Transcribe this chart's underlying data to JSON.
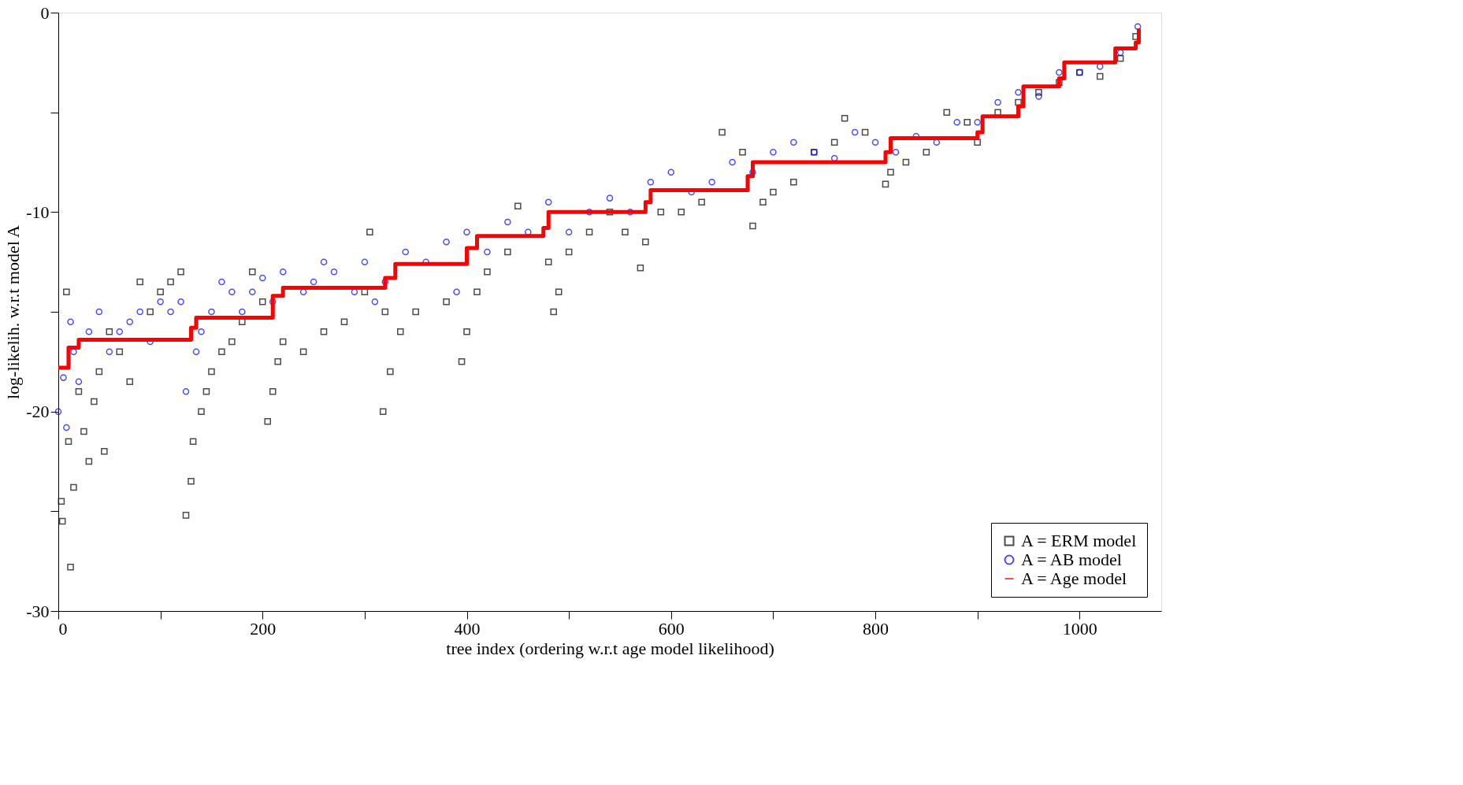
{
  "chart_data": {
    "type": "scatter",
    "xlabel": "tree index (ordering w.r.t age model likelihood)",
    "ylabel": "log-likelih. w.r.t model A",
    "xlim": [
      0,
      1080
    ],
    "ylim": [
      -30,
      0
    ],
    "xticks": [
      0,
      {
        "value": 100,
        "label": null
      },
      200,
      {
        "value": 300,
        "label": null
      },
      400,
      {
        "value": 500,
        "label": null
      },
      600,
      {
        "value": 700,
        "label": null
      },
      800,
      {
        "value": 900,
        "label": null
      },
      1000
    ],
    "yticks": [
      -30,
      {
        "value": -25,
        "label": null
      },
      -20,
      {
        "value": -15,
        "label": null
      },
      -10,
      {
        "value": -5,
        "label": null
      },
      0
    ],
    "grid": false,
    "legend": "bottom right",
    "series": [
      {
        "name": "A = ERM model",
        "color": "#000000",
        "marker": "square",
        "x": [
          3,
          4,
          10,
          12,
          8,
          15,
          20,
          25,
          30,
          35,
          40,
          45,
          50,
          60,
          70,
          80,
          90,
          100,
          110,
          120,
          125,
          130,
          132,
          140,
          145,
          150,
          160,
          170,
          180,
          190,
          200,
          205,
          210,
          215,
          220,
          240,
          260,
          280,
          300,
          305,
          320,
          318,
          325,
          335,
          350,
          380,
          395,
          400,
          410,
          420,
          440,
          450,
          480,
          485,
          490,
          500,
          520,
          540,
          555,
          570,
          575,
          590,
          610,
          630,
          650,
          670,
          680,
          690,
          700,
          720,
          740,
          760,
          770,
          790,
          810,
          815,
          830,
          850,
          870,
          890,
          900,
          920,
          940,
          960,
          980,
          1000,
          1020,
          1040,
          1055
        ],
        "values": [
          -24.5,
          -25.5,
          -21.5,
          -27.8,
          -14,
          -23.8,
          -19,
          -21,
          -22.5,
          -19.5,
          -18,
          -22,
          -16,
          -17,
          -18.5,
          -13.5,
          -15,
          -14,
          -13.5,
          -13,
          -25.2,
          -23.5,
          -21.5,
          -20,
          -19,
          -18,
          -17,
          -16.5,
          -15.5,
          -13,
          -14.5,
          -20.5,
          -19,
          -17.5,
          -16.5,
          -17,
          -16,
          -15.5,
          -14,
          -11,
          -15,
          -20,
          -18,
          -16,
          -15,
          -14.5,
          -17.5,
          -16,
          -14,
          -13,
          -12,
          -9.7,
          -12.5,
          -15,
          -14,
          -12,
          -11,
          -10,
          -11,
          -12.8,
          -11.5,
          -10,
          -10,
          -9.5,
          -6,
          -7,
          -10.7,
          -9.5,
          -9,
          -8.5,
          -7,
          -6.5,
          -5.3,
          -6,
          -8.6,
          -8,
          -7.5,
          -7,
          -5,
          -5.5,
          -6.5,
          -5,
          -4.5,
          -4,
          -3.5,
          -3,
          -3.2,
          -2.3,
          -1.2
        ]
      },
      {
        "name": "A = AB model",
        "color": "#0000ff",
        "marker": "circle",
        "x": [
          0,
          5,
          8,
          12,
          15,
          20,
          30,
          40,
          50,
          60,
          70,
          80,
          90,
          100,
          110,
          120,
          125,
          135,
          140,
          150,
          160,
          170,
          180,
          190,
          200,
          210,
          220,
          240,
          250,
          260,
          270,
          290,
          300,
          310,
          320,
          340,
          360,
          380,
          390,
          400,
          420,
          440,
          460,
          480,
          500,
          520,
          540,
          560,
          580,
          600,
          620,
          640,
          660,
          680,
          700,
          720,
          740,
          760,
          780,
          800,
          820,
          840,
          860,
          880,
          900,
          920,
          940,
          960,
          980,
          1000,
          1020,
          1040,
          1057
        ],
        "values": [
          -20,
          -18.3,
          -20.8,
          -15.5,
          -17,
          -18.5,
          -16,
          -15,
          -17,
          -16,
          -15.5,
          -15,
          -16.5,
          -14.5,
          -15,
          -14.5,
          -19,
          -17,
          -16,
          -15,
          -13.5,
          -14,
          -15,
          -14,
          -13.3,
          -14.5,
          -13,
          -14,
          -13.5,
          -12.5,
          -13,
          -14,
          -12.5,
          -14.5,
          -13.5,
          -12,
          -12.5,
          -11.5,
          -14,
          -11,
          -12,
          -10.5,
          -11,
          -9.5,
          -11,
          -10,
          -9.3,
          -10,
          -8.5,
          -8,
          -9,
          -8.5,
          -7.5,
          -8,
          -7,
          -6.5,
          -7,
          -7.3,
          -6,
          -6.5,
          -7,
          -6.2,
          -6.5,
          -5.5,
          -5.5,
          -4.5,
          -4,
          -4.2,
          -3,
          -3,
          -2.7,
          -2,
          -0.7
        ]
      },
      {
        "name": "A = Age model",
        "color": "#ff0000",
        "type": "step",
        "x": [
          0,
          10,
          20,
          130,
          135,
          210,
          220,
          320,
          330,
          400,
          410,
          475,
          480,
          575,
          580,
          675,
          680,
          810,
          815,
          900,
          905,
          940,
          945,
          980,
          985,
          1030,
          1035,
          1055,
          1058
        ],
        "values": [
          -17.8,
          -16.8,
          -16.4,
          -15.8,
          -15.3,
          -14.2,
          -13.8,
          -13.3,
          -12.6,
          -11.8,
          -11.2,
          -10.8,
          -10,
          -9.5,
          -8.9,
          -8.2,
          -7.5,
          -7,
          -6.3,
          -6,
          -5.2,
          -4.7,
          -3.7,
          -3.3,
          -2.5,
          -2.5,
          -1.8,
          -1.5,
          -0.8
        ]
      }
    ]
  }
}
